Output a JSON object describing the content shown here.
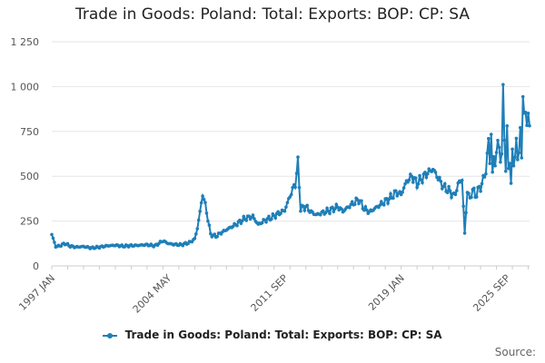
{
  "chart_data": {
    "type": "line",
    "title": "Trade in Goods: Poland: Total: Exports: BOP: CP: SA",
    "xlabel": "",
    "ylabel": "",
    "ylim": [
      0,
      1250
    ],
    "y_ticks": [
      0,
      250,
      500,
      750,
      1000,
      1250
    ],
    "y_tick_labels": [
      "0",
      "250",
      "500",
      "750",
      "1 000",
      "1 250"
    ],
    "x_tick_labels": [
      "1997 JAN",
      "2004 MAY",
      "2011 SEP",
      "2019 JAN",
      "2025 SEP"
    ],
    "x_tick_index": [
      0,
      88,
      176,
      264,
      344
    ],
    "grid": true,
    "legend_position": "bottom",
    "series": [
      {
        "name": "Trade in Goods: Poland: Total: Exports: BOP: CP: SA",
        "color": "#1f7fb8",
        "key_points": [
          [
            0,
            175
          ],
          [
            3,
            108
          ],
          [
            6,
            112
          ],
          [
            10,
            125
          ],
          [
            14,
            110
          ],
          [
            18,
            105
          ],
          [
            24,
            108
          ],
          [
            30,
            100
          ],
          [
            36,
            105
          ],
          [
            42,
            112
          ],
          [
            48,
            115
          ],
          [
            54,
            110
          ],
          [
            60,
            113
          ],
          [
            66,
            115
          ],
          [
            72,
            118
          ],
          [
            78,
            112
          ],
          [
            84,
            140
          ],
          [
            88,
            125
          ],
          [
            92,
            120
          ],
          [
            98,
            118
          ],
          [
            104,
            130
          ],
          [
            108,
            150
          ],
          [
            110,
            210
          ],
          [
            112,
            300
          ],
          [
            114,
            400
          ],
          [
            116,
            340
          ],
          [
            118,
            260
          ],
          [
            120,
            175
          ],
          [
            124,
            165
          ],
          [
            128,
            185
          ],
          [
            134,
            210
          ],
          [
            140,
            235
          ],
          [
            146,
            265
          ],
          [
            152,
            275
          ],
          [
            156,
            230
          ],
          [
            160,
            250
          ],
          [
            166,
            270
          ],
          [
            172,
            295
          ],
          [
            176,
            310
          ],
          [
            180,
            390
          ],
          [
            184,
            460
          ],
          [
            186,
            575
          ],
          [
            188,
            320
          ],
          [
            192,
            330
          ],
          [
            196,
            300
          ],
          [
            200,
            285
          ],
          [
            206,
            300
          ],
          [
            212,
            315
          ],
          [
            216,
            330
          ],
          [
            220,
            305
          ],
          [
            226,
            340
          ],
          [
            232,
            370
          ],
          [
            236,
            320
          ],
          [
            240,
            300
          ],
          [
            244,
            320
          ],
          [
            248,
            340
          ],
          [
            252,
            360
          ],
          [
            256,
            380
          ],
          [
            260,
            410
          ],
          [
            264,
            400
          ],
          [
            268,
            470
          ],
          [
            272,
            500
          ],
          [
            276,
            460
          ],
          [
            280,
            490
          ],
          [
            284,
            520
          ],
          [
            288,
            540
          ],
          [
            292,
            490
          ],
          [
            296,
            440
          ],
          [
            300,
            420
          ],
          [
            304,
            390
          ],
          [
            308,
            470
          ],
          [
            310,
            480
          ],
          [
            312,
            180
          ],
          [
            314,
            420
          ],
          [
            316,
            370
          ],
          [
            318,
            430
          ],
          [
            320,
            390
          ],
          [
            322,
            420
          ],
          [
            324,
            440
          ],
          [
            326,
            480
          ],
          [
            328,
            530
          ],
          [
            330,
            700
          ],
          [
            331,
            580
          ],
          [
            332,
            740
          ],
          [
            333,
            520
          ],
          [
            334,
            600
          ],
          [
            335,
            560
          ],
          [
            336,
            650
          ],
          [
            337,
            690
          ],
          [
            338,
            640
          ],
          [
            339,
            600
          ],
          [
            340,
            640
          ],
          [
            341,
            960
          ],
          [
            342,
            700
          ],
          [
            343,
            560
          ],
          [
            344,
            760
          ],
          [
            345,
            520
          ],
          [
            346,
            600
          ],
          [
            347,
            470
          ],
          [
            348,
            620
          ],
          [
            349,
            560
          ],
          [
            350,
            630
          ],
          [
            351,
            700
          ],
          [
            352,
            580
          ],
          [
            353,
            640
          ],
          [
            354,
            780
          ],
          [
            355,
            600
          ],
          [
            356,
            930
          ],
          [
            357,
            850
          ],
          [
            358,
            880
          ],
          [
            359,
            780
          ],
          [
            360,
            820
          ],
          [
            361,
            800
          ]
        ]
      }
    ],
    "source_label": "Source:"
  }
}
